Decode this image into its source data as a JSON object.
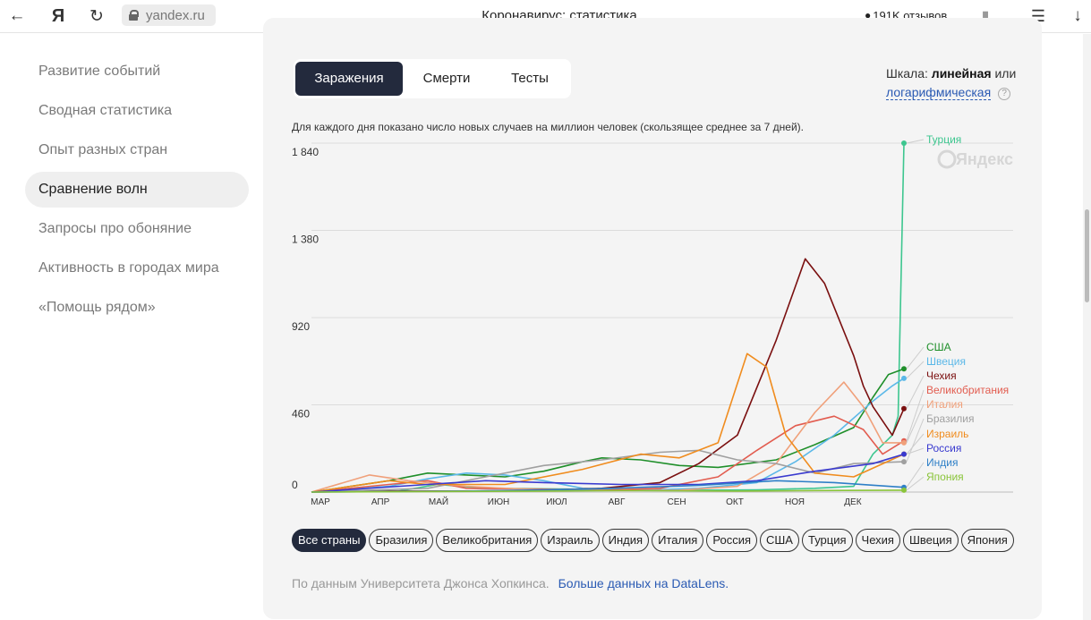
{
  "browser": {
    "url": "yandex.ru",
    "title": "Коронавирус: статистика",
    "reviews": "191K отзывов",
    "back_icon": "arrow-left-icon",
    "yandex_icon": "yandex-logo-icon",
    "reload_icon": "reload-icon"
  },
  "sidebar": {
    "items": [
      {
        "label": "Развитие событий"
      },
      {
        "label": "Сводная статистика"
      },
      {
        "label": "Опыт разных стран"
      },
      {
        "label": "Сравнение волн"
      },
      {
        "label": "Запросы про обоняние"
      },
      {
        "label": "Активность в городах мира"
      },
      {
        "label": "«Помощь рядом»"
      }
    ],
    "active": "Сравнение волн"
  },
  "tabs": [
    {
      "label": "Заражения"
    },
    {
      "label": "Смерти"
    },
    {
      "label": "Тесты"
    }
  ],
  "scale": {
    "prefix": "Шкала:",
    "linear": "линейная",
    "or": "или",
    "log": "логарифмическая",
    "help": "?"
  },
  "chart_note": "Для каждого дня показано число новых случаев на миллион человек (скользящее среднее за 7 дней).",
  "chart_data": {
    "type": "line",
    "watermark": "Яндекс",
    "x_ticks": [
      "МАР",
      "АПР",
      "МАЙ",
      "ИЮН",
      "ИЮЛ",
      "АВГ",
      "СЕН",
      "ОКТ",
      "НОЯ",
      "ДЕК"
    ],
    "y_ticks": [
      "0",
      "460",
      "920",
      "1 380",
      "1 840"
    ],
    "ylim": [
      0,
      1840
    ],
    "grid": true,
    "series": [
      {
        "name": "Турция",
        "color": "#3dc68f",
        "points": [
          [
            0,
            0
          ],
          [
            45,
            5
          ],
          [
            65,
            40
          ],
          [
            90,
            20
          ],
          [
            140,
            15
          ],
          [
            180,
            12
          ],
          [
            200,
            10
          ],
          [
            230,
            12
          ],
          [
            260,
            20
          ],
          [
            280,
            30
          ],
          [
            290,
            200
          ],
          [
            300,
            300
          ],
          [
            303,
            400
          ],
          [
            306,
            1840
          ]
        ],
        "end": 1840
      },
      {
        "name": "США",
        "color": "#1f8f2a",
        "points": [
          [
            0,
            0
          ],
          [
            40,
            60
          ],
          [
            60,
            100
          ],
          [
            80,
            90
          ],
          [
            100,
            80
          ],
          [
            120,
            110
          ],
          [
            140,
            160
          ],
          [
            150,
            180
          ],
          [
            170,
            170
          ],
          [
            190,
            140
          ],
          [
            210,
            130
          ],
          [
            240,
            170
          ],
          [
            260,
            250
          ],
          [
            280,
            340
          ],
          [
            290,
            500
          ],
          [
            298,
            620
          ],
          [
            306,
            650
          ]
        ],
        "end": 650
      },
      {
        "name": "Швеция",
        "color": "#5bb8e8",
        "points": [
          [
            0,
            0
          ],
          [
            40,
            30
          ],
          [
            60,
            70
          ],
          [
            80,
            100
          ],
          [
            100,
            90
          ],
          [
            120,
            60
          ],
          [
            140,
            20
          ],
          [
            170,
            10
          ],
          [
            200,
            20
          ],
          [
            230,
            50
          ],
          [
            250,
            160
          ],
          [
            270,
            300
          ],
          [
            290,
            480
          ],
          [
            300,
            560
          ],
          [
            306,
            600
          ]
        ],
        "end": 600
      },
      {
        "name": "Чехия",
        "color": "#7a0f0f",
        "points": [
          [
            0,
            0
          ],
          [
            40,
            5
          ],
          [
            80,
            5
          ],
          [
            120,
            10
          ],
          [
            150,
            20
          ],
          [
            180,
            50
          ],
          [
            200,
            150
          ],
          [
            220,
            300
          ],
          [
            240,
            800
          ],
          [
            255,
            1230
          ],
          [
            265,
            1100
          ],
          [
            280,
            720
          ],
          [
            285,
            560
          ],
          [
            290,
            450
          ],
          [
            300,
            300
          ],
          [
            306,
            440
          ]
        ],
        "end": 440
      },
      {
        "name": "Великобритания",
        "color": "#e25c4f",
        "points": [
          [
            0,
            0
          ],
          [
            40,
            40
          ],
          [
            60,
            60
          ],
          [
            80,
            20
          ],
          [
            120,
            15
          ],
          [
            150,
            10
          ],
          [
            180,
            20
          ],
          [
            210,
            80
          ],
          [
            230,
            220
          ],
          [
            250,
            350
          ],
          [
            270,
            400
          ],
          [
            285,
            330
          ],
          [
            295,
            200
          ],
          [
            306,
            270
          ]
        ],
        "end": 270
      },
      {
        "name": "Италия",
        "color": "#f0a07a",
        "points": [
          [
            0,
            0
          ],
          [
            30,
            90
          ],
          [
            50,
            60
          ],
          [
            80,
            30
          ],
          [
            120,
            10
          ],
          [
            160,
            8
          ],
          [
            190,
            10
          ],
          [
            220,
            30
          ],
          [
            240,
            150
          ],
          [
            260,
            420
          ],
          [
            275,
            580
          ],
          [
            285,
            450
          ],
          [
            295,
            260
          ],
          [
            306,
            260
          ]
        ],
        "end": 260
      },
      {
        "name": "Бразилия",
        "color": "#a0a0a0",
        "points": [
          [
            0,
            0
          ],
          [
            60,
            20
          ],
          [
            90,
            80
          ],
          [
            120,
            140
          ],
          [
            150,
            170
          ],
          [
            180,
            210
          ],
          [
            200,
            220
          ],
          [
            220,
            170
          ],
          [
            240,
            150
          ],
          [
            260,
            100
          ],
          [
            280,
            150
          ],
          [
            306,
            160
          ]
        ],
        "end": 160
      },
      {
        "name": "Израиль",
        "color": "#f08c1e",
        "points": [
          [
            0,
            0
          ],
          [
            40,
            60
          ],
          [
            60,
            40
          ],
          [
            100,
            40
          ],
          [
            140,
            120
          ],
          [
            170,
            200
          ],
          [
            190,
            180
          ],
          [
            210,
            260
          ],
          [
            225,
            730
          ],
          [
            235,
            660
          ],
          [
            245,
            300
          ],
          [
            260,
            100
          ],
          [
            280,
            80
          ],
          [
            306,
            200
          ]
        ],
        "end": 200
      },
      {
        "name": "Россия",
        "color": "#3a3acf",
        "points": [
          [
            0,
            0
          ],
          [
            60,
            40
          ],
          [
            90,
            60
          ],
          [
            120,
            50
          ],
          [
            160,
            40
          ],
          [
            200,
            40
          ],
          [
            230,
            60
          ],
          [
            260,
            110
          ],
          [
            290,
            150
          ],
          [
            306,
            200
          ]
        ],
        "end": 200
      },
      {
        "name": "Индия",
        "color": "#2e7fc7",
        "points": [
          [
            0,
            0
          ],
          [
            80,
            5
          ],
          [
            140,
            15
          ],
          [
            200,
            35
          ],
          [
            240,
            60
          ],
          [
            270,
            50
          ],
          [
            306,
            25
          ]
        ],
        "end": 25
      },
      {
        "name": "Япония",
        "color": "#8ac43a",
        "points": [
          [
            0,
            0
          ],
          [
            60,
            3
          ],
          [
            120,
            5
          ],
          [
            160,
            8
          ],
          [
            220,
            5
          ],
          [
            260,
            8
          ],
          [
            306,
            10
          ]
        ],
        "end": 10
      }
    ]
  },
  "countries": {
    "items": [
      {
        "label": "Все страны",
        "active": true
      },
      {
        "label": "Бразилия"
      },
      {
        "label": "Великобритания"
      },
      {
        "label": "Израиль"
      },
      {
        "label": "Индия"
      },
      {
        "label": "Италия"
      },
      {
        "label": "Россия"
      },
      {
        "label": "США"
      },
      {
        "label": "Турция"
      },
      {
        "label": "Чехия"
      },
      {
        "label": "Швеция"
      },
      {
        "label": "Япония"
      }
    ]
  },
  "source": {
    "text": "По данным Университета Джонса Хопкинса.",
    "link": "Больше данных на DataLens."
  }
}
